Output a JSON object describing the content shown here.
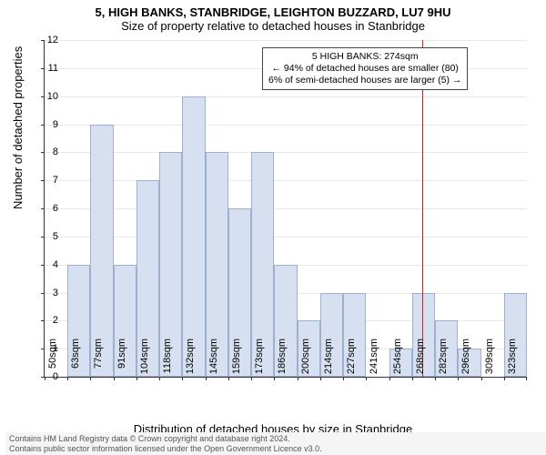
{
  "title_main": "5, HIGH BANKS, STANBRIDGE, LEIGHTON BUZZARD, LU7 9HU",
  "title_sub": "Size of property relative to detached houses in Stanbridge",
  "yaxis_label": "Number of detached properties",
  "xaxis_label": "Distribution of detached houses by size in Stanbridge",
  "chart": {
    "type": "histogram",
    "ylim": [
      0,
      12
    ],
    "ytick_step": 1,
    "xcategories": [
      "50sqm",
      "63sqm",
      "77sqm",
      "91sqm",
      "104sqm",
      "118sqm",
      "132sqm",
      "145sqm",
      "159sqm",
      "173sqm",
      "186sqm",
      "200sqm",
      "214sqm",
      "227sqm",
      "241sqm",
      "254sqm",
      "268sqm",
      "282sqm",
      "296sqm",
      "309sqm",
      "323sqm"
    ],
    "values": [
      0,
      4,
      9,
      4,
      7,
      8,
      10,
      8,
      6,
      8,
      4,
      2,
      3,
      3,
      0,
      1,
      3,
      2,
      1,
      0,
      3
    ],
    "bar_fill": "#d6e0f0",
    "bar_border": "#9eb0d0",
    "grid_color": "#e8e8e8",
    "background": "#ffffff",
    "marker_bin_index": 16,
    "marker_color": "#d02020"
  },
  "annotation": {
    "line1": "5 HIGH BANKS: 274sqm",
    "line2": "← 94% of detached houses are smaller (80)",
    "line3": "6% of semi-detached houses are larger (5) →"
  },
  "footer": {
    "line1": "Contains HM Land Registry data © Crown copyright and database right 2024.",
    "line2": "Contains public sector information licensed under the Open Government Licence v3.0."
  }
}
